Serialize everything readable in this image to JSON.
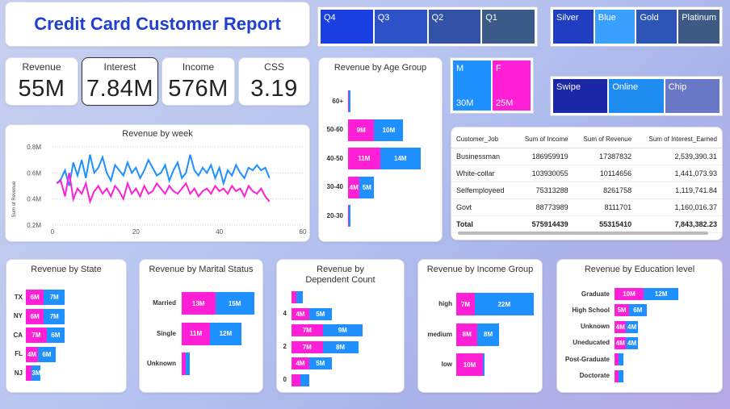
{
  "header": {
    "title": "Credit Card Customer Report"
  },
  "kpis": [
    {
      "label": "Revenue",
      "value": "55M"
    },
    {
      "label": "Interest",
      "value": "7.84M"
    },
    {
      "label": "Income",
      "value": "576M"
    },
    {
      "label": "CSS",
      "value": "3.19"
    }
  ],
  "quarter_slicer": {
    "items": [
      "Q4",
      "Q3",
      "Q2",
      "Q1"
    ]
  },
  "card_slicer": {
    "items": [
      "Silver",
      "Blue",
      "Gold",
      "Platinum"
    ]
  },
  "gender_slicer": {
    "items": [
      {
        "label": "M",
        "value": "30M"
      },
      {
        "label": "F",
        "value": "25M"
      }
    ]
  },
  "channel_slicer": {
    "items": [
      "Swipe",
      "Online",
      "Chip"
    ]
  },
  "colors": {
    "male": "#1e90ff",
    "female": "#ff1fd6",
    "title": "#1e3fd0"
  },
  "age_chart": {
    "title": "Revenue by Age Group",
    "rows": [
      {
        "label": "60+",
        "f": 0.4,
        "m": 0.5,
        "f_label": "",
        "m_label": ""
      },
      {
        "label": "50-60",
        "f": 9,
        "m": 10,
        "f_label": "9M",
        "m_label": "10M"
      },
      {
        "label": "40-50",
        "f": 11,
        "m": 14,
        "f_label": "11M",
        "m_label": "14M"
      },
      {
        "label": "30-40",
        "f": 4,
        "m": 5,
        "f_label": "4M",
        "m_label": "5M"
      },
      {
        "label": "20-30",
        "f": 0.3,
        "m": 0.4,
        "f_label": "",
        "m_label": ""
      }
    ]
  },
  "table": {
    "headers": [
      "Customer_Job",
      "Sum of Income",
      "Sum of Revenue",
      "Sum of Interest_Earned"
    ],
    "rows": [
      [
        "Businessman",
        "186959919",
        "17387832",
        "2,539,390.31"
      ],
      [
        "White-collar",
        "103930055",
        "10114656",
        "1,441,073.93"
      ],
      [
        "Selfemployeed",
        "75313288",
        "8261758",
        "1,119,741.84"
      ],
      [
        "Govt",
        "88773989",
        "8111701",
        "1,160,016.37"
      ]
    ],
    "total": [
      "Total",
      "575914439",
      "55315410",
      "7,843,382.23"
    ]
  },
  "week_chart": {
    "title": "Revenue by week",
    "ylabel": "Sum of Revenue",
    "y_ticks": [
      "0.8M",
      "0.6M",
      "0.4M",
      "0.2M"
    ],
    "x_ticks": [
      "0",
      "20",
      "40",
      "60"
    ],
    "chart_data": {
      "type": "line",
      "xlim": [
        0,
        60
      ],
      "ylim": [
        0.2,
        0.8
      ],
      "series": [
        {
          "name": "M",
          "values": [
            0.52,
            0.55,
            0.62,
            0.5,
            0.68,
            0.58,
            0.7,
            0.56,
            0.74,
            0.6,
            0.64,
            0.72,
            0.6,
            0.54,
            0.66,
            0.62,
            0.58,
            0.68,
            0.6,
            0.64,
            0.56,
            0.62,
            0.7,
            0.64,
            0.58,
            0.6,
            0.66,
            0.54,
            0.62,
            0.68,
            0.56,
            0.6,
            0.74,
            0.62,
            0.58,
            0.64,
            0.6,
            0.66,
            0.56,
            0.64,
            0.52,
            0.62,
            0.58,
            0.66,
            0.6,
            0.56,
            0.64,
            0.62,
            0.66,
            0.62,
            0.64,
            0.56
          ]
        },
        {
          "name": "F",
          "values": [
            0.52,
            0.54,
            0.42,
            0.6,
            0.4,
            0.48,
            0.44,
            0.52,
            0.38,
            0.46,
            0.5,
            0.44,
            0.48,
            0.42,
            0.5,
            0.46,
            0.4,
            0.52,
            0.44,
            0.48,
            0.42,
            0.5,
            0.44,
            0.46,
            0.52,
            0.48,
            0.44,
            0.5,
            0.46,
            0.44,
            0.48,
            0.52,
            0.44,
            0.48,
            0.42,
            0.46,
            0.48,
            0.44,
            0.5,
            0.46,
            0.48,
            0.44,
            0.5,
            0.46,
            0.48,
            0.42,
            0.5,
            0.46,
            0.44,
            0.48,
            0.42,
            0.38
          ]
        }
      ]
    }
  },
  "state_chart": {
    "title": "Revenue by State",
    "rows": [
      {
        "label": "TX",
        "f": 6,
        "m": 7,
        "f_label": "6M",
        "m_label": "7M"
      },
      {
        "label": "NY",
        "f": 6,
        "m": 7,
        "f_label": "6M",
        "m_label": "7M"
      },
      {
        "label": "CA",
        "f": 7,
        "m": 6,
        "f_label": "7M",
        "m_label": "6M"
      },
      {
        "label": "FL",
        "f": 4,
        "m": 6,
        "f_label": "4M",
        "m_label": "6M"
      },
      {
        "label": "NJ",
        "f": 2,
        "m": 3,
        "f_label": "",
        "m_label": "3M"
      }
    ]
  },
  "marital_chart": {
    "title": "Revenue by Marital Status",
    "rows": [
      {
        "label": "Married",
        "f": 13,
        "m": 15,
        "f_label": "13M",
        "m_label": "15M"
      },
      {
        "label": "Single",
        "f": 11,
        "m": 12,
        "f_label": "11M",
        "m_label": "12M"
      },
      {
        "label": "Unknown",
        "f": 1.5,
        "m": 1.5,
        "f_label": "",
        "m_label": ""
      }
    ]
  },
  "dependent_chart": {
    "title": "Revenue by Dependent Count",
    "rows": [
      {
        "label": "",
        "f": 1,
        "m": 1.5,
        "f_label": "",
        "m_label": ""
      },
      {
        "label": "4",
        "f": 4,
        "m": 5,
        "f_label": "4M",
        "m_label": "5M"
      },
      {
        "label": "",
        "f": 7,
        "m": 9,
        "f_label": "7M",
        "m_label": "9M"
      },
      {
        "label": "2",
        "f": 7,
        "m": 8,
        "f_label": "7M",
        "m_label": "8M"
      },
      {
        "label": "",
        "f": 4,
        "m": 5,
        "f_label": "4M",
        "m_label": "5M"
      },
      {
        "label": "0",
        "f": 2,
        "m": 2,
        "f_label": "",
        "m_label": ""
      }
    ]
  },
  "income_chart": {
    "title": "Revenue by Income Group",
    "rows": [
      {
        "label": "high",
        "f": 7,
        "m": 22,
        "f_label": "7M",
        "m_label": "22M"
      },
      {
        "label": "medium",
        "f": 8,
        "m": 8,
        "f_label": "8M",
        "m_label": "8M"
      },
      {
        "label": "low",
        "f": 10,
        "m": 0.5,
        "f_label": "10M",
        "m_label": ""
      }
    ]
  },
  "education_chart": {
    "title": "Revenue by Education level",
    "rows": [
      {
        "label": "Graduate",
        "f": 10,
        "m": 12,
        "f_label": "10M",
        "m_label": "12M"
      },
      {
        "label": "High School",
        "f": 5,
        "m": 6,
        "f_label": "5M",
        "m_label": "6M"
      },
      {
        "label": "Unknown",
        "f": 4,
        "m": 4,
        "f_label": "4M",
        "m_label": "4M"
      },
      {
        "label": "Uneducated",
        "f": 4,
        "m": 4,
        "f_label": "4M",
        "m_label": "4M"
      },
      {
        "label": "Post-Graduate",
        "f": 1.5,
        "m": 1.5,
        "f_label": "",
        "m_label": ""
      },
      {
        "label": "Doctorate",
        "f": 1.5,
        "m": 1.5,
        "f_label": "",
        "m_label": ""
      }
    ]
  }
}
